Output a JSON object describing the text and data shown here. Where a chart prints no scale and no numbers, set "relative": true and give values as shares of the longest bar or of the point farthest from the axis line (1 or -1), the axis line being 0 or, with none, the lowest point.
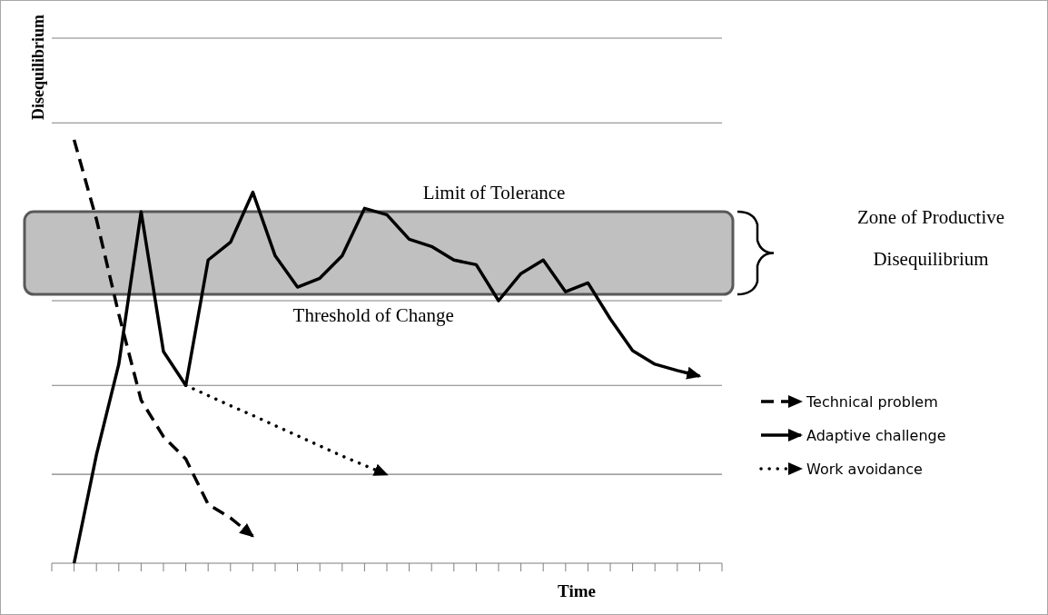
{
  "chart_data": {
    "type": "line",
    "relative": true,
    "xlabel": "Time",
    "ylabel": "Disequilibrium",
    "legend": "right",
    "marker": "none",
    "categories": [
      null,
      null,
      null,
      null,
      null,
      null,
      null,
      null,
      null,
      null,
      null,
      null,
      null,
      null,
      null,
      null,
      null,
      null,
      null,
      null,
      null,
      null,
      null,
      null,
      null,
      null,
      null,
      null,
      null,
      null,
      null
    ],
    "series": [
      {
        "name": "Technical problem",
        "color": "#000000",
        "line_style": "dashed",
        "values": [
          null,
          1.0,
          0.812,
          0.588,
          0.385,
          0.299,
          0.246,
          0.139,
          0.107,
          0.064,
          null,
          null,
          null,
          null,
          null,
          null,
          null,
          null,
          null,
          null,
          null,
          null,
          null,
          null,
          null,
          null,
          null,
          null,
          null,
          null,
          null
        ]
      },
      {
        "name": "Adaptive challenge",
        "color": "#000000",
        "line_style": "solid",
        "values": [
          null,
          0,
          0.256,
          0.47,
          0.83,
          0.5,
          0.42,
          0.716,
          0.758,
          0.876,
          0.726,
          0.652,
          0.673,
          0.726,
          0.838,
          0.823,
          0.765,
          0.748,
          0.716,
          0.705,
          0.62,
          0.684,
          0.716,
          0.641,
          0.662,
          0.577,
          0.502,
          0.47,
          0.455,
          0.442,
          null
        ]
      },
      {
        "name": "Work avoidance",
        "color": "#000000",
        "line_style": "dotted",
        "values": [
          null,
          null,
          null,
          null,
          null,
          null,
          0.42,
          0.396,
          0.372,
          0.349,
          0.325,
          0.301,
          0.277,
          0.253,
          0.231,
          0.209,
          null,
          null,
          null,
          null,
          null,
          null,
          null,
          null,
          null,
          null,
          null,
          null,
          null,
          null,
          null
        ]
      }
    ],
    "ref_lines": [
      {
        "axis": "y",
        "value": 0.21,
        "color": "#808080"
      },
      {
        "axis": "y",
        "value": 0.42,
        "color": "#808080"
      },
      {
        "axis": "y",
        "value": 0.62,
        "color": "#808080"
      },
      {
        "axis": "y",
        "value": 1.04,
        "color": "#808080"
      },
      {
        "axis": "y",
        "value": 1.24,
        "color": "#808080"
      }
    ],
    "bands": [
      {
        "axis": "y",
        "from": 0.635,
        "to": 0.83,
        "color": "#c0c0c0"
      }
    ],
    "annotations": [
      "Limit of Tolerance",
      "Threshold of Change",
      "Zone of Productive Disequilibrium"
    ]
  }
}
